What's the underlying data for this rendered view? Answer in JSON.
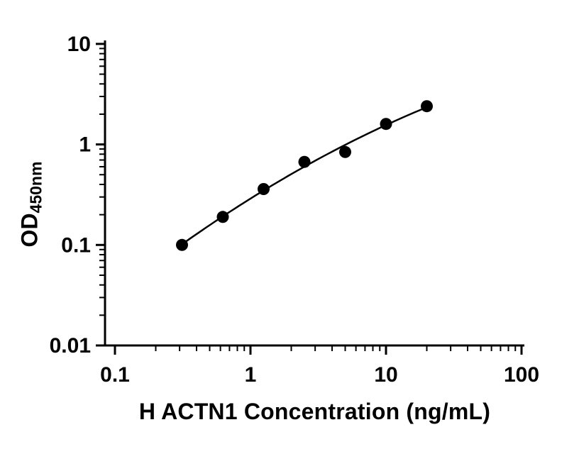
{
  "chart_data": {
    "type": "scatter",
    "title": "",
    "xlabel": "H ACTN1 Concentration (ng/mL)",
    "ylabel_main": "OD",
    "ylabel_sub": "450nm",
    "x_scale": "log10",
    "y_scale": "log10",
    "xlim": [
      0.1,
      100
    ],
    "ylim": [
      0.01,
      10
    ],
    "grid": false,
    "legend": false,
    "x_ticks": [
      {
        "value": 0.1,
        "label": "0.1"
      },
      {
        "value": 1,
        "label": "1"
      },
      {
        "value": 10,
        "label": "10"
      },
      {
        "value": 100,
        "label": "100"
      }
    ],
    "y_ticks": [
      {
        "value": 0.01,
        "label": "0.01"
      },
      {
        "value": 0.1,
        "label": "0.1"
      },
      {
        "value": 1,
        "label": "1"
      },
      {
        "value": 10,
        "label": "10"
      }
    ],
    "points": {
      "x": [
        0.3125,
        0.625,
        1.25,
        2.5,
        5,
        10,
        20
      ],
      "y": [
        0.1,
        0.19,
        0.36,
        0.67,
        0.84,
        1.6,
        2.4
      ]
    },
    "fit": "standard-curve (quadratic in log-log space)",
    "marker": "filled-circle",
    "marker_color": "#000000",
    "line_color": "#000000",
    "axis_color": "#000000",
    "background_color": "#ffffff"
  }
}
